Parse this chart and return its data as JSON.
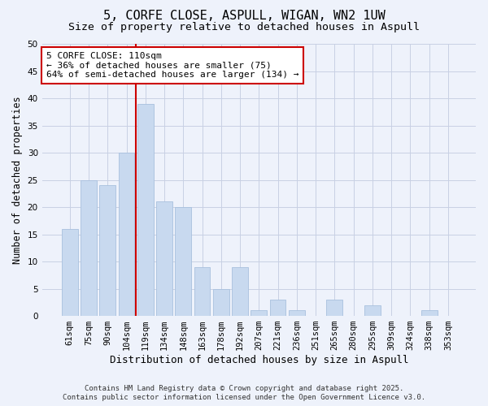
{
  "title": "5, CORFE CLOSE, ASPULL, WIGAN, WN2 1UW",
  "subtitle": "Size of property relative to detached houses in Aspull",
  "xlabel": "Distribution of detached houses by size in Aspull",
  "ylabel": "Number of detached properties",
  "bar_labels": [
    "61sqm",
    "75sqm",
    "90sqm",
    "104sqm",
    "119sqm",
    "134sqm",
    "148sqm",
    "163sqm",
    "178sqm",
    "192sqm",
    "207sqm",
    "221sqm",
    "236sqm",
    "251sqm",
    "265sqm",
    "280sqm",
    "295sqm",
    "309sqm",
    "324sqm",
    "338sqm",
    "353sqm"
  ],
  "bar_values": [
    16,
    25,
    24,
    30,
    39,
    21,
    20,
    9,
    5,
    9,
    1,
    3,
    1,
    0,
    3,
    0,
    2,
    0,
    0,
    1,
    0
  ],
  "bar_color": "#c8d9ef",
  "bar_edge_color": "#a8c0de",
  "ylim": [
    0,
    50
  ],
  "yticks": [
    0,
    5,
    10,
    15,
    20,
    25,
    30,
    35,
    40,
    45,
    50
  ],
  "vline_x": 3.5,
  "vline_color": "#cc0000",
  "annotation_title": "5 CORFE CLOSE: 110sqm",
  "annotation_line1": "← 36% of detached houses are smaller (75)",
  "annotation_line2": "64% of semi-detached houses are larger (134) →",
  "annotation_box_facecolor": "#ffffff",
  "annotation_box_edgecolor": "#cc0000",
  "footer1": "Contains HM Land Registry data © Crown copyright and database right 2025.",
  "footer2": "Contains public sector information licensed under the Open Government Licence v3.0.",
  "background_color": "#eef2fb",
  "plot_background": "#eef2fb",
  "grid_color": "#c8d0e4",
  "title_fontsize": 11,
  "subtitle_fontsize": 9.5,
  "xlabel_fontsize": 9,
  "ylabel_fontsize": 8.5,
  "tick_fontsize": 7.5,
  "annot_fontsize": 8,
  "footer_fontsize": 6.5
}
